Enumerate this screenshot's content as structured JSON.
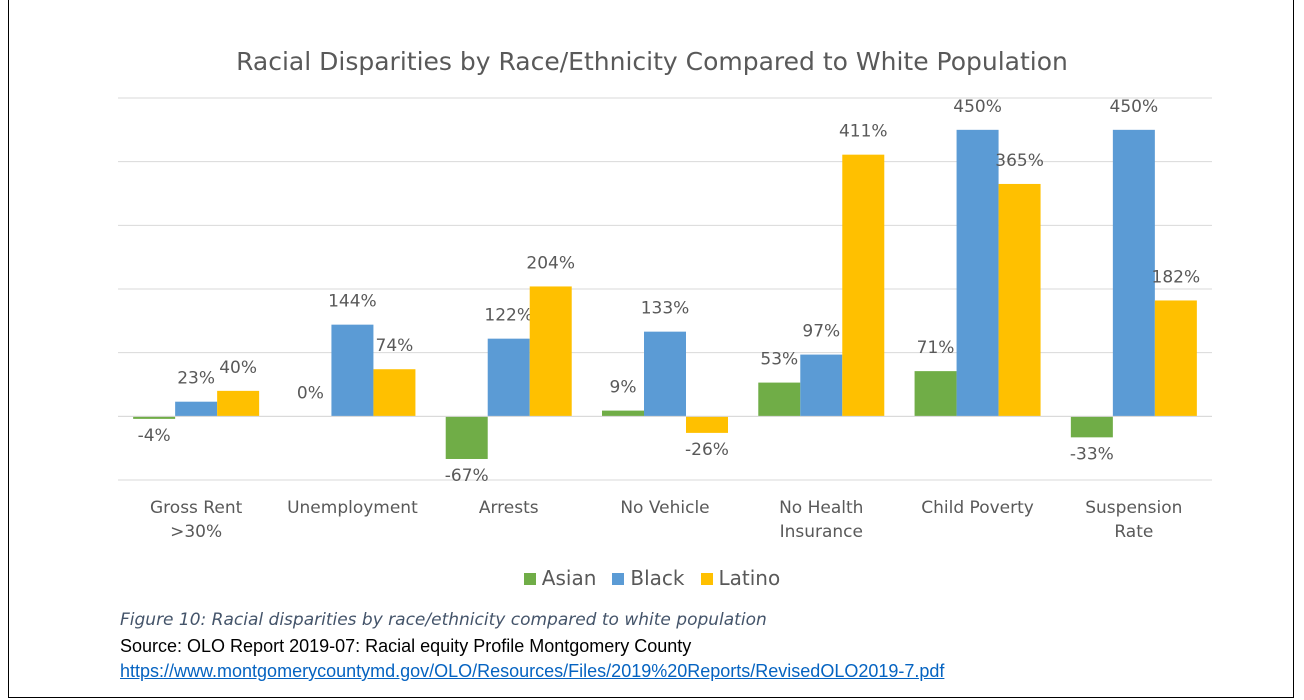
{
  "chart_data": {
    "type": "bar",
    "title": "Racial Disparities by Race/Ethnicity Compared to White Population",
    "categories": [
      "Gross Rent >30%",
      "Unemployment",
      "Arrests",
      "No Vehicle",
      "No Health Insurance",
      "Child Poverty",
      "Suspension Rate"
    ],
    "series": [
      {
        "name": "Asian",
        "color": "#70ad47",
        "values": [
          -4,
          0,
          -67,
          9,
          53,
          71,
          -33
        ],
        "value_labels": [
          "-4%",
          "0%",
          "-67%",
          "9%",
          "53%",
          "71%",
          "-33%"
        ]
      },
      {
        "name": "Black",
        "color": "#5b9bd5",
        "values": [
          23,
          144,
          122,
          133,
          97,
          450,
          450
        ],
        "value_labels": [
          "23%",
          "144%",
          "122%",
          "133%",
          "97%",
          "450%",
          "450%"
        ]
      },
      {
        "name": "Latino",
        "color": "#ffc000",
        "values": [
          40,
          74,
          204,
          -26,
          411,
          365,
          182
        ],
        "value_labels": [
          "40%",
          "74%",
          "204%",
          "-26%",
          "411%",
          "365%",
          "182%"
        ]
      }
    ],
    "ylim": [
      -100,
      500
    ],
    "yticks": [
      -100,
      0,
      100,
      200,
      300,
      400,
      500
    ],
    "grid": true,
    "legend": "bottom"
  },
  "caption": "Figure 10: Racial disparities by race/ethnicity compared to white population",
  "source": "Source: OLO Report 2019-07: Racial equity Profile Montgomery County",
  "link": "https://www.montgomerycountymd.gov/OLO/Resources/Files/2019%20Reports/RevisedOLO2019-7.pdf"
}
